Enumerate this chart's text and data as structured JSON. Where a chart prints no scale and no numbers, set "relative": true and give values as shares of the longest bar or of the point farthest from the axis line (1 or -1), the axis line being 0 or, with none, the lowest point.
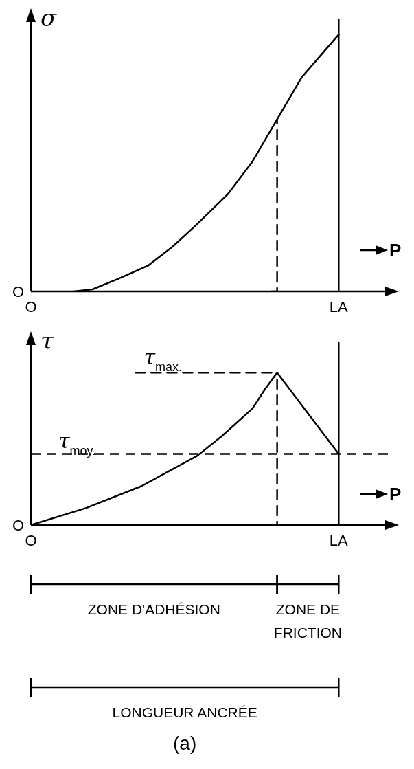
{
  "chart_data": [
    {
      "type": "line",
      "relative": true,
      "ylabel": "σ",
      "line_style": "solid",
      "categories": [
        "O",
        null,
        null,
        null,
        null,
        null,
        null,
        null,
        null,
        null,
        null,
        null,
        null,
        null,
        null,
        null,
        null,
        null,
        null,
        null,
        null,
        null,
        null,
        null,
        null,
        null,
        null,
        null,
        null,
        null,
        null,
        null,
        null,
        null,
        null,
        null,
        null,
        null,
        null,
        null,
        null,
        null,
        null,
        null,
        null,
        null,
        null,
        null,
        null,
        null,
        "LA",
        null,
        null,
        null,
        null,
        null,
        null,
        null,
        null
      ],
      "series": [
        {
          "color": "#000000",
          "values": [
            null,
            null,
            null,
            null,
            null,
            null,
            null,
            0,
            null,
            null,
            0.008,
            null,
            null,
            null,
            0.047,
            null,
            null,
            null,
            null,
            0.1,
            null,
            null,
            null,
            0.174,
            null,
            null,
            null,
            0.262,
            null,
            null,
            null,
            null,
            0.379,
            null,
            null,
            null,
            0.506,
            null,
            null,
            null,
            0.67,
            null,
            null,
            null,
            0.834,
            null,
            null,
            0.917,
            null,
            null,
            1,
            null,
            null,
            null,
            null,
            null,
            null,
            null,
            null
          ]
        },
        {
          "type": "step",
          "color": "#000000",
          "line_style": "dashed",
          "values": [
            null,
            null,
            null,
            null,
            null,
            null,
            null,
            null,
            null,
            null,
            null,
            null,
            null,
            null,
            null,
            null,
            null,
            null,
            null,
            null,
            null,
            null,
            null,
            null,
            null,
            null,
            null,
            null,
            null,
            null,
            null,
            null,
            null,
            null,
            null,
            null,
            null,
            null,
            null,
            0,
            0.67,
            null,
            null,
            null,
            null,
            null,
            null,
            null,
            null,
            null,
            null,
            null,
            null,
            null,
            null,
            null,
            null,
            null,
            null
          ]
        }
      ],
      "ref_lines": [
        {
          "axis": "x",
          "value": "LA",
          "color": "#000000",
          "line_style": "solid"
        }
      ],
      "annotations": [
        "O",
        "P"
      ]
    },
    {
      "type": "line",
      "relative": true,
      "ylabel": "τ",
      "line_style": "solid",
      "categories": [
        "O",
        null,
        null,
        null,
        null,
        null,
        null,
        null,
        null,
        null,
        null,
        null,
        null,
        null,
        null,
        null,
        null,
        null,
        null,
        null,
        null,
        null,
        null,
        null,
        null,
        null,
        null,
        null,
        null,
        null,
        null,
        null,
        null,
        null,
        null,
        null,
        null,
        null,
        null,
        null,
        null,
        null,
        null,
        null,
        null,
        null,
        null,
        null,
        null,
        null,
        "LA",
        null,
        null,
        null,
        null,
        null,
        null,
        null,
        null
      ],
      "series": [
        {
          "color": "#000000",
          "values": [
            0,
            null,
            null,
            null,
            null,
            null,
            null,
            null,
            null,
            0.112,
            null,
            null,
            null,
            null,
            null,
            null,
            null,
            null,
            0.256,
            null,
            null,
            null,
            null,
            null,
            null,
            null,
            null,
            0.454,
            null,
            null,
            null,
            0.583,
            null,
            null,
            null,
            null,
            0.765,
            null,
            0.89,
            null,
            1,
            null,
            null,
            null,
            null,
            null,
            null,
            null,
            null,
            null,
            0.467,
            null,
            null,
            null,
            null,
            null,
            null,
            null,
            null
          ]
        },
        {
          "type": "step",
          "color": "#000000",
          "line_style": "dashed",
          "values": [
            null,
            null,
            null,
            null,
            null,
            null,
            null,
            null,
            null,
            null,
            null,
            null,
            null,
            null,
            null,
            null,
            null,
            null,
            null,
            null,
            null,
            null,
            null,
            null,
            null,
            null,
            null,
            null,
            null,
            null,
            null,
            null,
            null,
            null,
            null,
            null,
            null,
            null,
            null,
            0,
            1,
            null,
            null,
            null,
            null,
            null,
            null,
            null,
            null,
            null,
            null,
            null,
            null,
            null,
            null,
            null,
            null,
            null,
            null
          ]
        },
        {
          "color": "#000000",
          "line_style": "dashed",
          "values": [
            null,
            null,
            null,
            null,
            null,
            null,
            null,
            null,
            null,
            null,
            null,
            null,
            null,
            null,
            null,
            null,
            null,
            1,
            null,
            null,
            null,
            null,
            null,
            null,
            null,
            null,
            null,
            null,
            null,
            null,
            null,
            null,
            null,
            null,
            null,
            null,
            null,
            null,
            null,
            null,
            1,
            null,
            null,
            null,
            null,
            null,
            null,
            null,
            null,
            null,
            null,
            null,
            null,
            null,
            null,
            null,
            null,
            null,
            null
          ]
        }
      ],
      "ref_lines": [
        {
          "axis": "x",
          "value": "LA",
          "color": "#000000",
          "line_style": "solid"
        },
        {
          "axis": "y",
          "value": 0.467,
          "color": "#000000",
          "line_style": "dashed",
          "label": "τ$_{moy.}$"
        }
      ],
      "annotations": [
        "O",
        "P",
        "τ$_{max.}$",
        "ZONE D'ADHÉSION",
        "ZONE DE FRICTION",
        "LONGUEUR ANCRÉE",
        "(a)"
      ]
    }
  ]
}
